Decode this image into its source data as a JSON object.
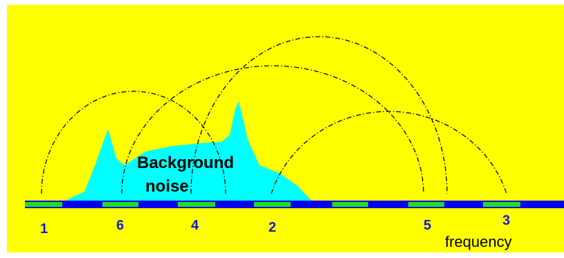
{
  "diagram": {
    "background_color": "#ffff00",
    "noise_color": "#00ffff",
    "band_colors": {
      "green": "#22dd22",
      "blue": "#0000ee"
    },
    "noise_label_line1": "Background",
    "noise_label_line2": "noise",
    "axis_label": "frequency",
    "channels": [
      {
        "id": "ch-1",
        "label": "1"
      },
      {
        "id": "ch-6",
        "label": "6"
      },
      {
        "id": "ch-4",
        "label": "4"
      },
      {
        "id": "ch-2",
        "label": "2"
      },
      {
        "id": "ch-5",
        "label": "5"
      },
      {
        "id": "ch-3",
        "label": "3"
      }
    ]
  }
}
